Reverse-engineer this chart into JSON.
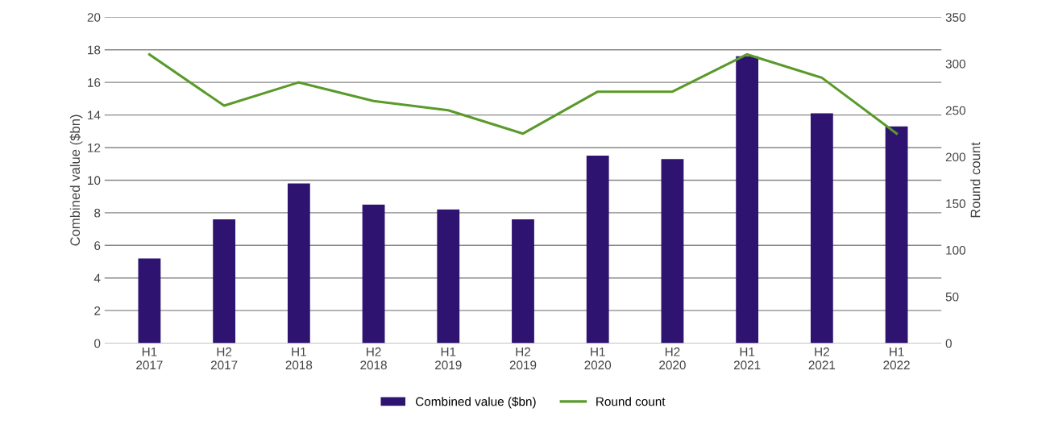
{
  "chart_data": {
    "type": "bar",
    "ylabel": "Combined value ($bn)",
    "y2label": "Round count",
    "categories": [
      "H1\n2017",
      "H2\n2017",
      "H1\n2018",
      "H2\n2018",
      "H1\n2019",
      "H2\n2019",
      "H1\n2020",
      "H2\n2020",
      "H1\n2021",
      "H2\n2021",
      "H1\n2022"
    ],
    "series": [
      {
        "name": "Combined value ($bn)",
        "color": "#2e1470",
        "values": [
          5.2,
          7.6,
          9.8,
          8.5,
          8.2,
          7.6,
          11.5,
          11.3,
          17.6,
          14.1,
          13.3
        ]
      },
      {
        "name": "Round count",
        "type": "line",
        "axis": "y2",
        "color": "#5a9a2a",
        "values": [
          310,
          255,
          280,
          260,
          250,
          225,
          270,
          270,
          310,
          285,
          225
        ]
      }
    ],
    "ylim": [
      0,
      20
    ],
    "yticks": [
      0,
      2,
      4,
      6,
      8,
      10,
      12,
      14,
      16,
      18,
      20
    ],
    "y2lim": [
      0,
      350
    ],
    "y2ticks": [
      0,
      50,
      100,
      150,
      200,
      250,
      300,
      350
    ],
    "grid": "y",
    "legend": "bottom",
    "marker": "none",
    "line_style": "solid"
  }
}
